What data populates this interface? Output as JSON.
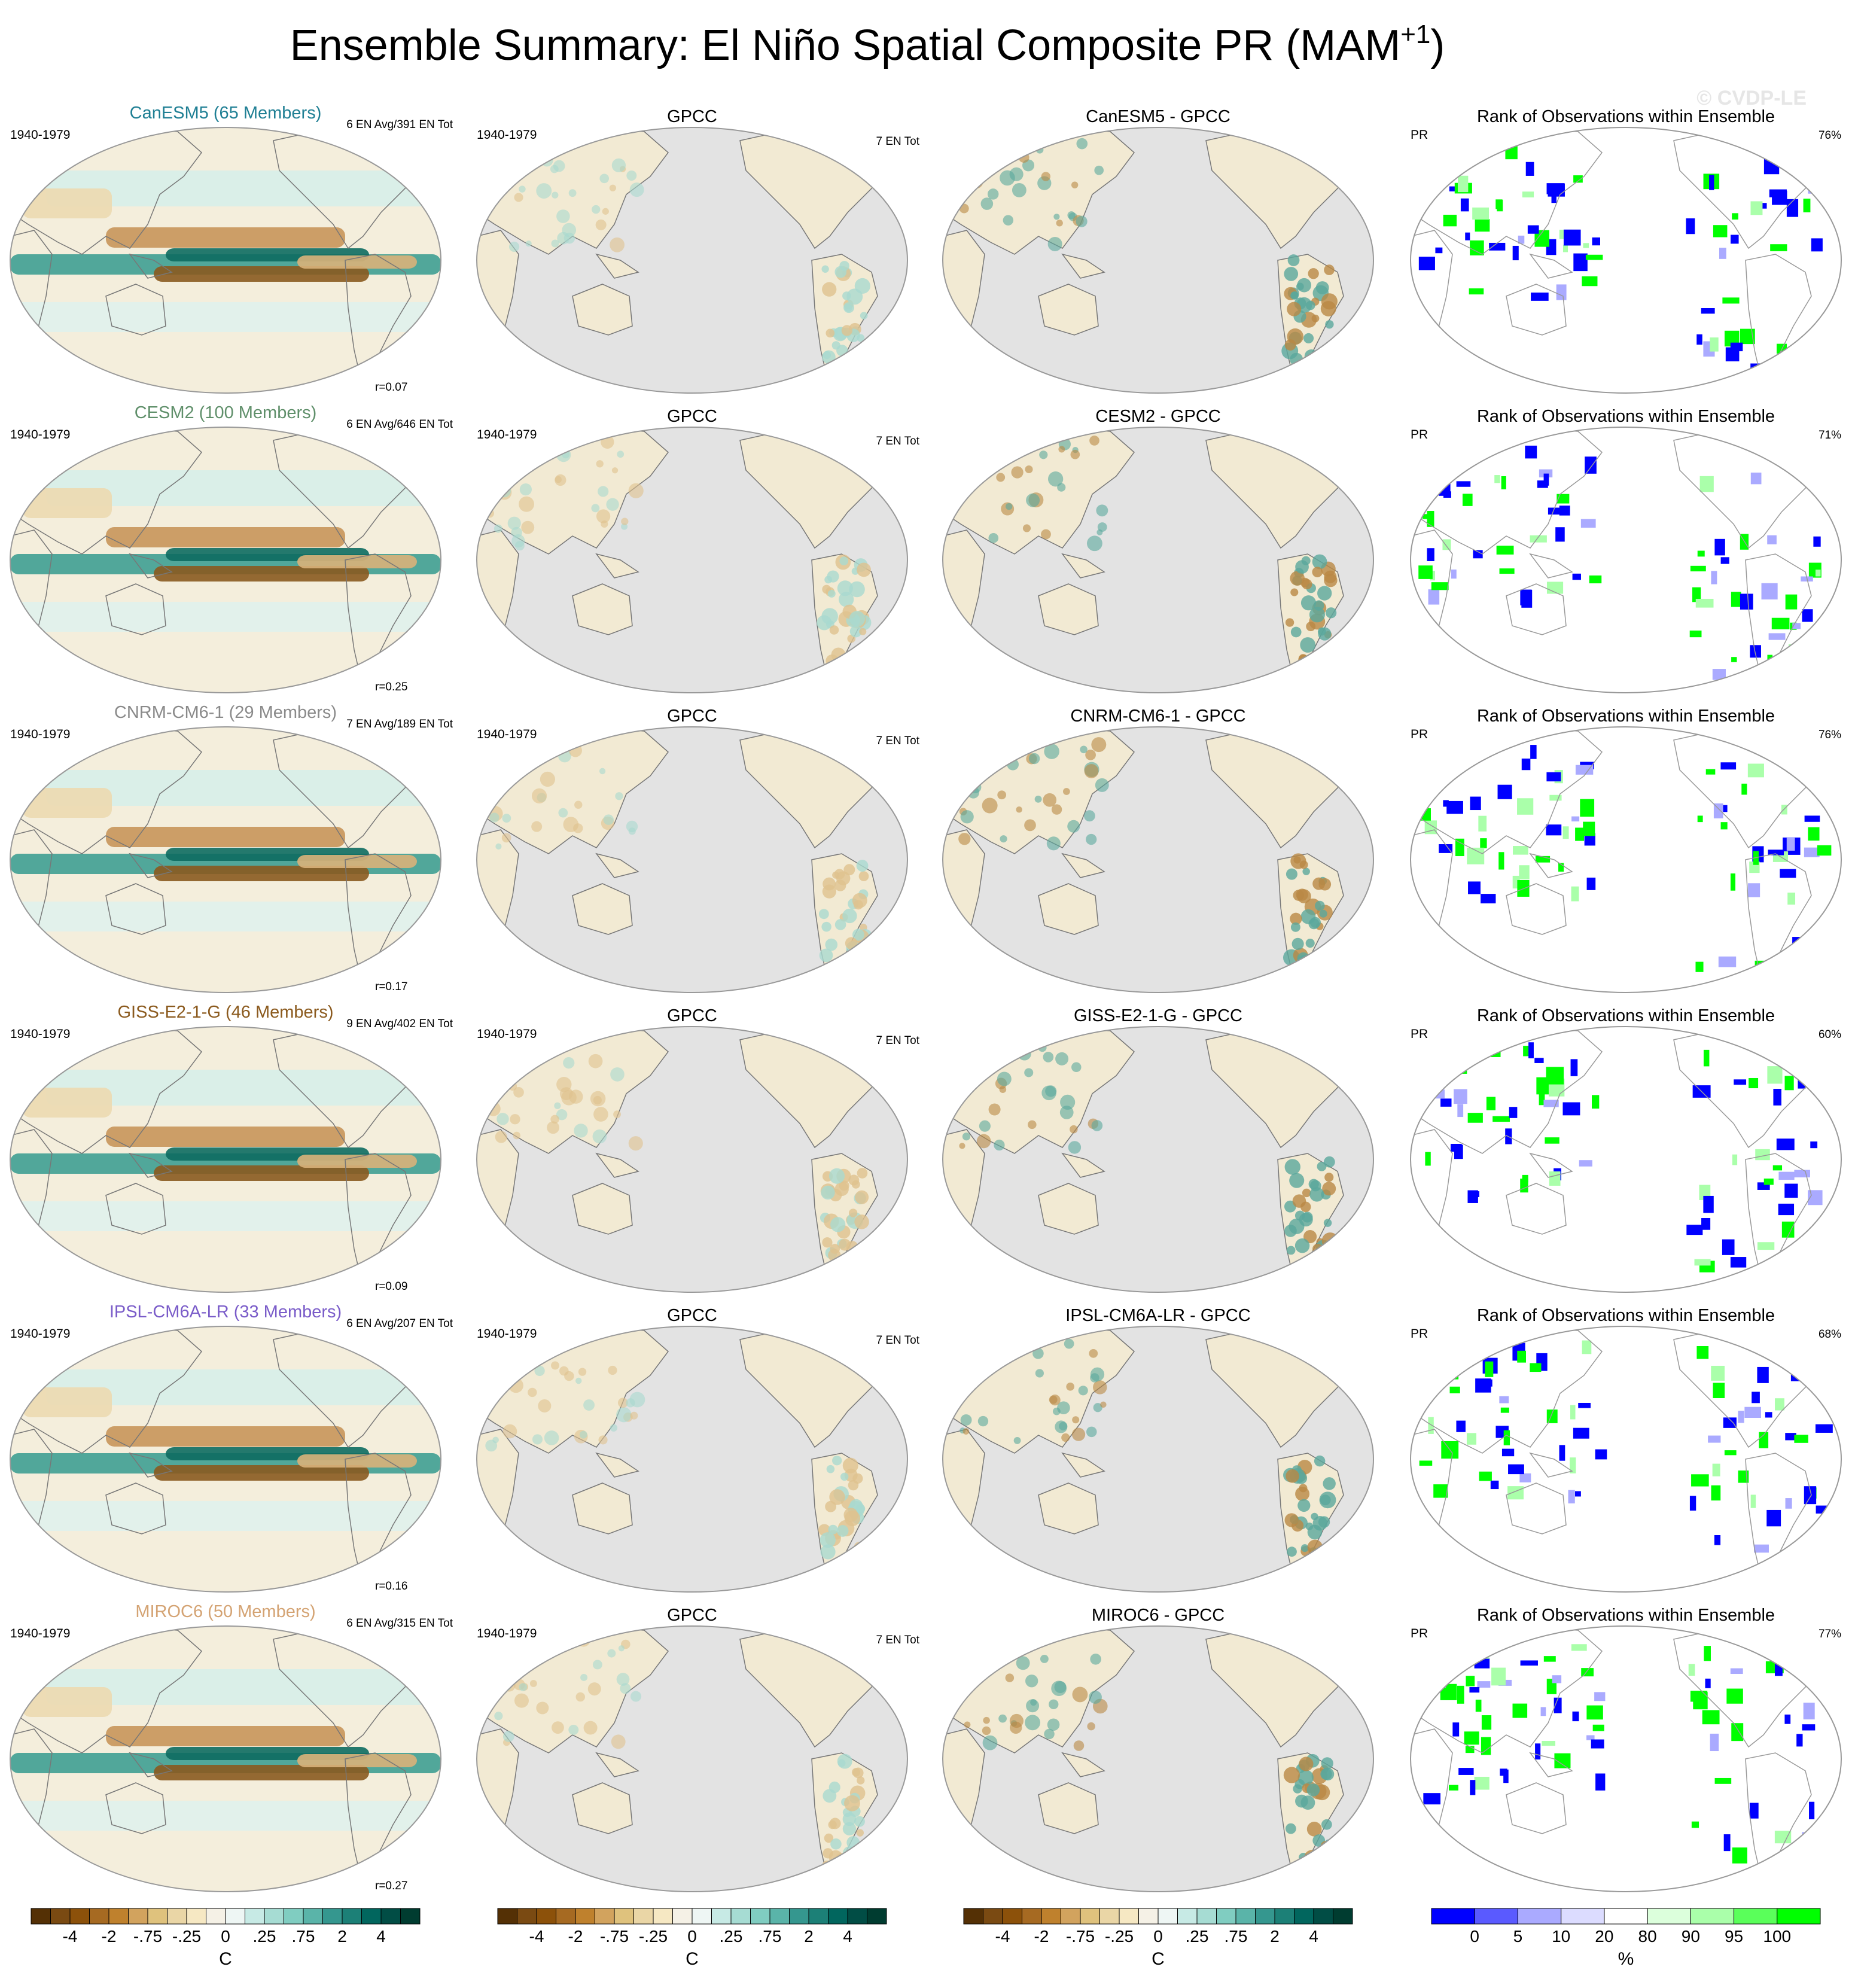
{
  "title": {
    "main": "Ensemble Summary: El Niño Spatial Composite PR (MAM",
    "superscript": "+1",
    "closing": ")"
  },
  "watermark": "© CVDP-LE",
  "rows": [
    {
      "model_title": "CanESM5 (65 Members)",
      "model_color": "#1f7f94",
      "period": "1940-1979",
      "model_count": "6 EN Avg/391 EN Tot",
      "correlation": "r=0.07",
      "obs_title": "GPCC",
      "obs_period": "1940-1979",
      "obs_count": "7 EN Tot",
      "diff_title": "CanESM5 - GPCC",
      "rank_title": "Rank of Observations within Ensemble",
      "rank_variable": "PR",
      "rank_percent": "76%"
    },
    {
      "model_title": "CESM2 (100 Members)",
      "model_color": "#5f8f6a",
      "period": "1940-1979",
      "model_count": "6 EN Avg/646 EN Tot",
      "correlation": "r=0.25",
      "obs_title": "GPCC",
      "obs_period": "1940-1979",
      "obs_count": "7 EN Tot",
      "diff_title": "CESM2 - GPCC",
      "rank_title": "Rank of Observations within Ensemble",
      "rank_variable": "PR",
      "rank_percent": "71%"
    },
    {
      "model_title": "CNRM-CM6-1 (29 Members)",
      "model_color": "#8a8a8a",
      "period": "1940-1979",
      "model_count": "7 EN Avg/189 EN Tot",
      "correlation": "r=0.17",
      "obs_title": "GPCC",
      "obs_period": "1940-1979",
      "obs_count": "7 EN Tot",
      "diff_title": "CNRM-CM6-1 - GPCC",
      "rank_title": "Rank of Observations within Ensemble",
      "rank_variable": "PR",
      "rank_percent": "76%"
    },
    {
      "model_title": "GISS-E2-1-G (46 Members)",
      "model_color": "#8b5a1e",
      "period": "1940-1979",
      "model_count": "9 EN Avg/402 EN Tot",
      "correlation": "r=0.09",
      "obs_title": "GPCC",
      "obs_period": "1940-1979",
      "obs_count": "7 EN Tot",
      "diff_title": "GISS-E2-1-G - GPCC",
      "rank_title": "Rank of Observations within Ensemble",
      "rank_variable": "PR",
      "rank_percent": "60%"
    },
    {
      "model_title": "IPSL-CM6A-LR (33 Members)",
      "model_color": "#7a5cc9",
      "period": "1940-1979",
      "model_count": "6 EN Avg/207 EN Tot",
      "correlation": "r=0.16",
      "obs_title": "GPCC",
      "obs_period": "1940-1979",
      "obs_count": "7 EN Tot",
      "diff_title": "IPSL-CM6A-LR - GPCC",
      "rank_title": "Rank of Observations within Ensemble",
      "rank_variable": "PR",
      "rank_percent": "68%"
    },
    {
      "model_title": "MIROC6 (50 Members)",
      "model_color": "#d4a373",
      "period": "1940-1979",
      "model_count": "6 EN Avg/315 EN Tot",
      "correlation": "r=0.27",
      "obs_title": "GPCC",
      "obs_period": "1940-1979",
      "obs_count": "7 EN Tot",
      "diff_title": "MIROC6 - GPCC",
      "rank_title": "Rank of Observations within Ensemble",
      "rank_variable": "PR",
      "rank_percent": "77%"
    }
  ],
  "colorbars": [
    {
      "labels": [
        "-4",
        "-2",
        "-.75",
        "-.25",
        "0",
        ".25",
        ".75",
        "2",
        "4"
      ],
      "unit": "C"
    },
    {
      "labels": [
        "-4",
        "-2",
        "-.75",
        "-.25",
        "0",
        ".25",
        ".75",
        "2",
        "4"
      ],
      "unit": "C"
    },
    {
      "labels": [
        "-4",
        "-2",
        "-.75",
        "-.25",
        "0",
        ".25",
        ".75",
        "2",
        "4"
      ],
      "unit": "C"
    },
    {
      "labels": [
        "0",
        "5",
        "10",
        "20",
        "80",
        "90",
        "95",
        "100"
      ],
      "unit": "%"
    }
  ]
}
